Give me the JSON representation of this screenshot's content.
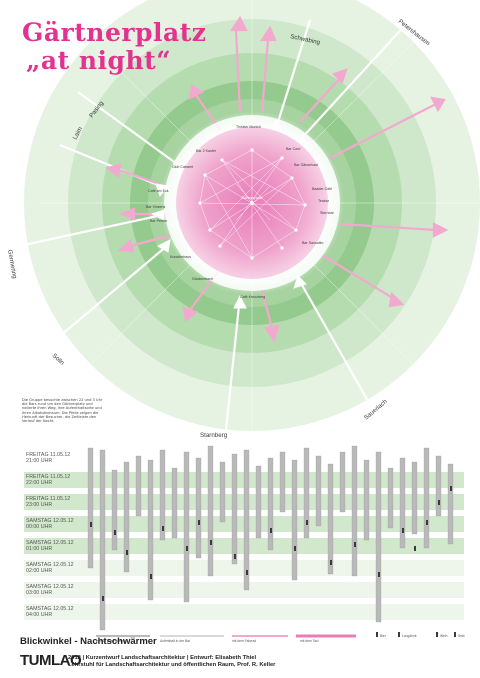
{
  "title": {
    "line1": "Gärtnerplatz",
    "line2": "„at night“"
  },
  "center_label": "Gärtnerplatz",
  "directions": [
    "Petershausen",
    "Schwabing",
    "Laim",
    "Pasing",
    "Germering",
    "Solln",
    "Starnberg",
    "Sauerlach"
  ],
  "place_labels": [
    "Theater Munich",
    "Bar Cord",
    "Bar Gänsehaut",
    "Baader Café",
    "Teabar",
    "Sternbar",
    "Bar Sausalito",
    "Café Kreuzberg",
    "Glockenbach",
    "Kunstlerhaus",
    "Bar Perrier",
    "Bar Vinzenz",
    "Café am Eck",
    "Club Cabaret",
    "Bar 2 Kaufer"
  ],
  "description": "Die Gruppe besuchte zwischen 22 und 3 Uhr die Bars rund um den Gärtnerplatz und notierte ihren Weg, ihre Aufenthaltsorte und ihren Alkoholkonsum. Die Pfeile zeigen die Herkunft der Besucher, die Zeitleiste den Verlauf der Nacht.",
  "timeline": {
    "rows": [
      {
        "day": "FREITAG 11.05.12",
        "time": "21:00 UHR"
      },
      {
        "day": "FREITAG 11.05.12",
        "time": "22:00 UHR"
      },
      {
        "day": "FREITAG 11.05.12",
        "time": "23:00 UHR"
      },
      {
        "day": "SAMSTAG 12.05.12",
        "time": "00:00 UHR"
      },
      {
        "day": "SAMSTAG 12.05.12",
        "time": "01:00 UHR"
      },
      {
        "day": "SAMSTAG 12.05.12",
        "time": "02:00 UHR"
      },
      {
        "day": "SAMSTAG 12.05.12",
        "time": "03:00 UHR"
      },
      {
        "day": "SAMSTAG 12.05.12",
        "time": "04:00 UHR"
      }
    ]
  },
  "legend": [
    "zu Fuß aus Richtung ...",
    "Aufenthalt in der Bar",
    "mit dem Fahrrad",
    "mit dem Taxi",
    "Bier",
    "Longdrink",
    "Wein",
    "Sekt"
  ],
  "footer": {
    "heading": "Blickwinkel - Nachtschwärmer",
    "logo": "TUMLAO",
    "credit1": "2012 | Kurzentwurf Landschaftsarchitektur | Entwurf: Elisabeth Thiel",
    "credit2": "Lehrstuhl für Landschaftsarchitektur und öffentlichen Raum, Prof. R. Keller"
  },
  "colors": {
    "accent": "#e2338f",
    "pink_light": "#f3a9cf",
    "green_dark": "#7fc07a",
    "green_mid": "#a6d3a0",
    "green_light": "#cfe7cb",
    "bar_grey": "#b9b9b9"
  }
}
